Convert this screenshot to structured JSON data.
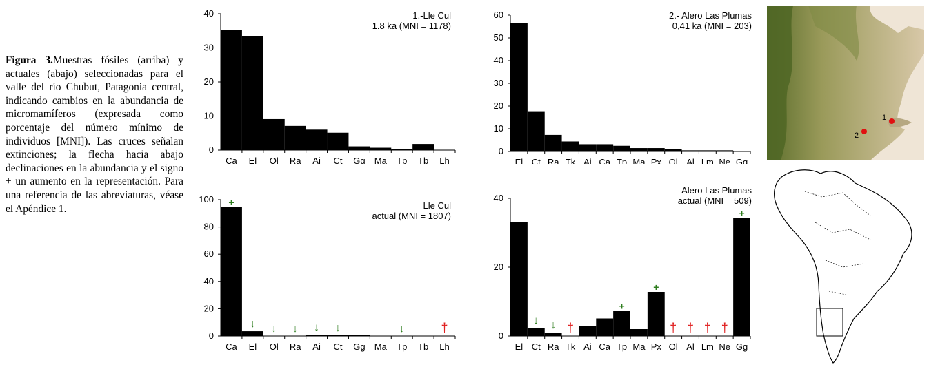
{
  "caption": {
    "label": "Figura 3.",
    "text": "Muestras fósiles (arriba) y actuales (abajo) seleccionadas para el valle del río Chubut, Patagonia central, indicando cambios en la abundancia de micromamíferos (expresada como porcentaje del número mínimo de individuos [MNI]). Las cruces señalan extinciones; la flecha hacia abajo declinaciones en la abundancia y el signo + un aumento en la representación. Para una referencia de las abreviaturas, véase el Apéndice 1."
  },
  "symbols": {
    "increase": "+",
    "decline": "↓",
    "extinction": "†"
  },
  "colors": {
    "bar": "#000000",
    "increase": "#2e7d1e",
    "decline": "#2e7d1e",
    "extinction": "#e02020",
    "map_site": "#e01010"
  },
  "chart_data": [
    {
      "id": "p1",
      "type": "bar",
      "title_lines": [
        "1.-Lle Cul",
        "1.8 ka (MNI = 1178)"
      ],
      "categories": [
        "Ca",
        "El",
        "Ol",
        "Ra",
        "Ai",
        "Ct",
        "Gg",
        "Ma",
        "Tp",
        "Tb",
        "Lh"
      ],
      "values": [
        35.2,
        33.5,
        9.1,
        7.1,
        6.0,
        5.1,
        1.1,
        0.7,
        0.3,
        1.8,
        0.1
      ],
      "ylim": [
        0,
        40
      ],
      "yticks": [
        0,
        10,
        20,
        30,
        40
      ],
      "markers": []
    },
    {
      "id": "p2",
      "type": "bar",
      "title_lines": [
        "2.- Alero Las Plumas",
        "0,41 ka (MNI = 203)"
      ],
      "categories": [
        "El",
        "Ct",
        "Ra",
        "Tk",
        "Ai",
        "Ca",
        "Tp",
        "Ma",
        "Px",
        "Ol",
        "Al",
        "Lm",
        "Ne",
        "Gg"
      ],
      "values": [
        56.5,
        17.7,
        7.3,
        4.4,
        3.2,
        3.2,
        2.5,
        1.5,
        1.5,
        1.0,
        0.5,
        0.5,
        0.5,
        0.0
      ],
      "ylim": [
        0,
        60
      ],
      "yticks": [
        0,
        10,
        20,
        30,
        40,
        50,
        60
      ],
      "markers": []
    },
    {
      "id": "p3",
      "type": "bar",
      "title_lines": [
        "Lle Cul",
        "actual (MNI = 1807)"
      ],
      "categories": [
        "Ca",
        "El",
        "Ol",
        "Ra",
        "Ai",
        "Ct",
        "Gg",
        "Ma",
        "Tp",
        "Tb",
        "Lh"
      ],
      "values": [
        94.5,
        3.5,
        0.0,
        0.0,
        0.8,
        0.6,
        1.0,
        0.0,
        0.0,
        0.0,
        0.0
      ],
      "ylim": [
        0,
        100
      ],
      "yticks": [
        0,
        20,
        40,
        60,
        80,
        100
      ],
      "markers": [
        {
          "category": "Ca",
          "symbol": "increase"
        },
        {
          "category": "El",
          "symbol": "decline"
        },
        {
          "category": "Ol",
          "symbol": "decline"
        },
        {
          "category": "Ra",
          "symbol": "decline"
        },
        {
          "category": "Ai",
          "symbol": "decline"
        },
        {
          "category": "Ct",
          "symbol": "decline"
        },
        {
          "category": "Tp",
          "symbol": "decline"
        },
        {
          "category": "Lh",
          "symbol": "extinction"
        }
      ]
    },
    {
      "id": "p4",
      "type": "bar",
      "title_lines": [
        "Alero Las Plumas",
        "actual (MNI = 509)"
      ],
      "categories": [
        "El",
        "Ct",
        "Ra",
        "Tk",
        "Ai",
        "Ca",
        "Tp",
        "Ma",
        "Px",
        "Ol",
        "Al",
        "Lm",
        "Ne",
        "Gg"
      ],
      "values": [
        33.2,
        2.3,
        1.0,
        0.0,
        2.9,
        5.1,
        7.3,
        2.0,
        12.8,
        0.0,
        0.0,
        0.0,
        0.0,
        34.3
      ],
      "ylim": [
        0,
        40
      ],
      "yticks": [
        0,
        20,
        40
      ],
      "markers": [
        {
          "category": "Ct",
          "symbol": "decline"
        },
        {
          "category": "Ra",
          "symbol": "decline"
        },
        {
          "category": "Tk",
          "symbol": "extinction"
        },
        {
          "category": "Tp",
          "symbol": "increase"
        },
        {
          "category": "Px",
          "symbol": "increase"
        },
        {
          "category": "Ol",
          "symbol": "extinction"
        },
        {
          "category": "Al",
          "symbol": "extinction"
        },
        {
          "category": "Lm",
          "symbol": "extinction"
        },
        {
          "category": "Ne",
          "symbol": "extinction"
        },
        {
          "category": "Gg",
          "symbol": "increase"
        }
      ]
    }
  ],
  "map": {
    "site_labels": [
      "1",
      "2"
    ]
  }
}
